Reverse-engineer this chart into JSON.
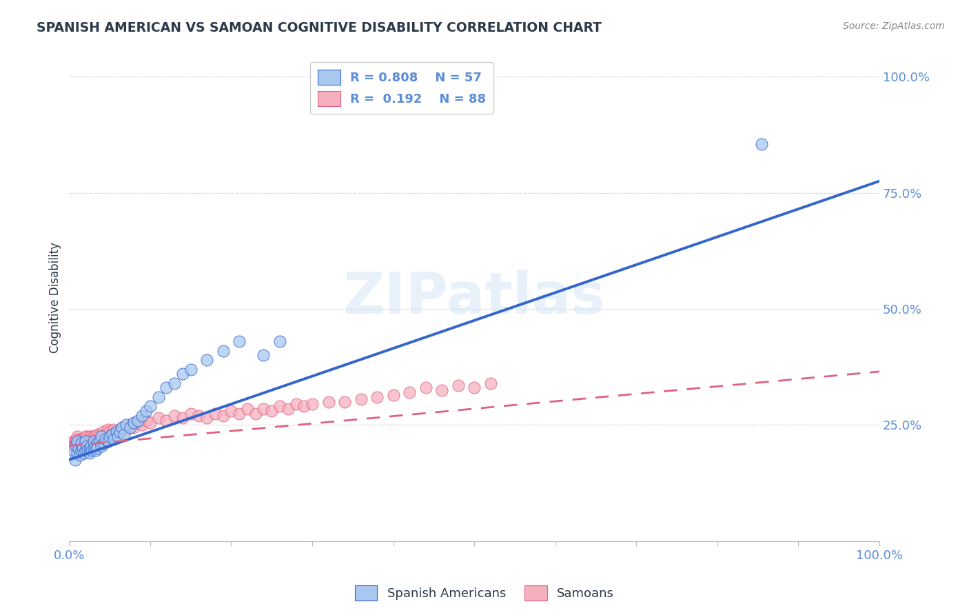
{
  "title": "SPANISH AMERICAN VS SAMOAN COGNITIVE DISABILITY CORRELATION CHART",
  "source_text": "Source: ZipAtlas.com",
  "ylabel": "Cognitive Disability",
  "xlim": [
    0.0,
    1.0
  ],
  "ylim": [
    0.0,
    1.05
  ],
  "yticks": [
    0.0,
    0.25,
    0.5,
    0.75,
    1.0
  ],
  "ytick_labels": [
    "",
    "25.0%",
    "50.0%",
    "75.0%",
    "100.0%"
  ],
  "grid_color": "#cccccc",
  "background_color": "#ffffff",
  "blue_color": "#a8c8f0",
  "blue_line_color": "#3366cc",
  "pink_color": "#f5b0c0",
  "pink_line_color": "#e06080",
  "blue_R": 0.808,
  "blue_N": 57,
  "pink_R": 0.192,
  "pink_N": 88,
  "blue_scatter_x": [
    0.005,
    0.007,
    0.008,
    0.01,
    0.01,
    0.012,
    0.013,
    0.015,
    0.015,
    0.017,
    0.018,
    0.02,
    0.02,
    0.022,
    0.023,
    0.025,
    0.025,
    0.027,
    0.028,
    0.03,
    0.03,
    0.032,
    0.033,
    0.035,
    0.035,
    0.038,
    0.04,
    0.04,
    0.043,
    0.045,
    0.048,
    0.05,
    0.053,
    0.055,
    0.058,
    0.06,
    0.063,
    0.065,
    0.068,
    0.07,
    0.075,
    0.08,
    0.085,
    0.09,
    0.095,
    0.1,
    0.11,
    0.12,
    0.13,
    0.14,
    0.15,
    0.17,
    0.19,
    0.21,
    0.24,
    0.26,
    0.855
  ],
  "blue_scatter_y": [
    0.195,
    0.175,
    0.205,
    0.19,
    0.215,
    0.2,
    0.185,
    0.195,
    0.21,
    0.2,
    0.19,
    0.195,
    0.215,
    0.205,
    0.195,
    0.2,
    0.19,
    0.205,
    0.195,
    0.2,
    0.215,
    0.205,
    0.195,
    0.21,
    0.2,
    0.215,
    0.205,
    0.225,
    0.21,
    0.22,
    0.215,
    0.225,
    0.23,
    0.22,
    0.235,
    0.225,
    0.235,
    0.245,
    0.23,
    0.25,
    0.245,
    0.255,
    0.26,
    0.27,
    0.28,
    0.29,
    0.31,
    0.33,
    0.34,
    0.36,
    0.37,
    0.39,
    0.41,
    0.43,
    0.4,
    0.43,
    0.855
  ],
  "pink_scatter_x": [
    0.003,
    0.005,
    0.005,
    0.007,
    0.008,
    0.009,
    0.01,
    0.01,
    0.01,
    0.012,
    0.012,
    0.013,
    0.014,
    0.015,
    0.015,
    0.015,
    0.016,
    0.017,
    0.018,
    0.018,
    0.019,
    0.02,
    0.02,
    0.02,
    0.022,
    0.022,
    0.023,
    0.024,
    0.025,
    0.025,
    0.026,
    0.027,
    0.028,
    0.03,
    0.03,
    0.032,
    0.033,
    0.035,
    0.035,
    0.037,
    0.038,
    0.04,
    0.042,
    0.045,
    0.048,
    0.05,
    0.053,
    0.055,
    0.06,
    0.065,
    0.07,
    0.075,
    0.08,
    0.085,
    0.09,
    0.095,
    0.1,
    0.11,
    0.12,
    0.13,
    0.14,
    0.15,
    0.16,
    0.17,
    0.18,
    0.19,
    0.2,
    0.21,
    0.22,
    0.23,
    0.24,
    0.25,
    0.26,
    0.27,
    0.28,
    0.29,
    0.3,
    0.32,
    0.34,
    0.36,
    0.38,
    0.4,
    0.42,
    0.44,
    0.46,
    0.48,
    0.5,
    0.52
  ],
  "pink_scatter_y": [
    0.21,
    0.215,
    0.205,
    0.215,
    0.21,
    0.22,
    0.205,
    0.215,
    0.225,
    0.21,
    0.22,
    0.215,
    0.205,
    0.215,
    0.22,
    0.21,
    0.215,
    0.22,
    0.215,
    0.21,
    0.22,
    0.215,
    0.225,
    0.21,
    0.215,
    0.225,
    0.215,
    0.22,
    0.215,
    0.225,
    0.215,
    0.22,
    0.225,
    0.215,
    0.225,
    0.22,
    0.225,
    0.22,
    0.23,
    0.225,
    0.23,
    0.225,
    0.235,
    0.23,
    0.24,
    0.235,
    0.23,
    0.24,
    0.235,
    0.245,
    0.24,
    0.25,
    0.245,
    0.255,
    0.25,
    0.26,
    0.255,
    0.265,
    0.26,
    0.27,
    0.265,
    0.275,
    0.27,
    0.265,
    0.275,
    0.27,
    0.28,
    0.275,
    0.285,
    0.275,
    0.285,
    0.28,
    0.29,
    0.285,
    0.295,
    0.29,
    0.295,
    0.3,
    0.3,
    0.305,
    0.31,
    0.315,
    0.32,
    0.33,
    0.325,
    0.335,
    0.33,
    0.34
  ],
  "blue_trend_y_start": 0.175,
  "blue_trend_y_end": 0.775,
  "pink_trend_y_start": 0.205,
  "pink_trend_y_end": 0.365,
  "watermark_text": "ZIPatlas",
  "title_color": "#2d3a4a",
  "tick_label_color": "#5b8dd9",
  "legend_R_color": "#5b8dd9",
  "source_color": "#888888"
}
